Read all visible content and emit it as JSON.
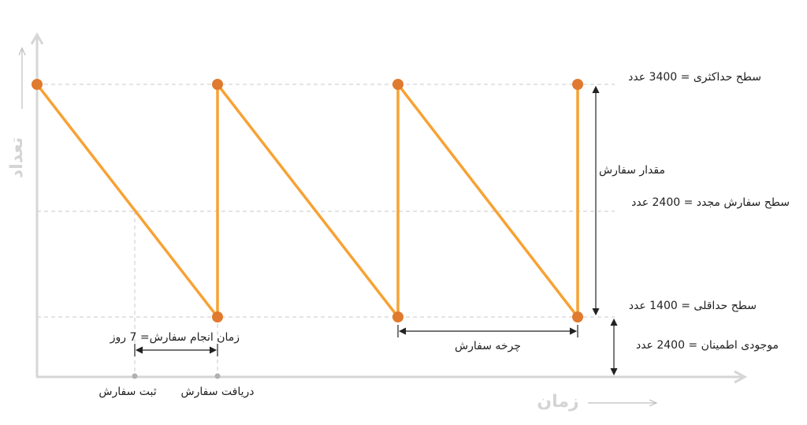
{
  "labels": {
    "y_axis_title": "تعداد",
    "x_axis_title": "زمان",
    "max_level": "سطح حداکثری = 3400 عدد",
    "reorder_level": "سطح سفارش مجدد = 2400 عدد",
    "min_level": "سطح حداقلی = 1400 عدد",
    "safety_stock": "موجودی اطمینان = 2400 عدد",
    "order_quantity": "مقدار سفارش",
    "order_cycle": "چرخه سفارش",
    "lead_time": "زمان انجام سفارش= 7 روز",
    "order_placed": "ثبت سفارش",
    "order_received": "دریافت سفارش"
  },
  "colors": {
    "line": "#f7a234",
    "point": "#e07a2e",
    "guide": "#c8c8c8",
    "axis": "#d6d6d6",
    "text": "#222222"
  }
}
